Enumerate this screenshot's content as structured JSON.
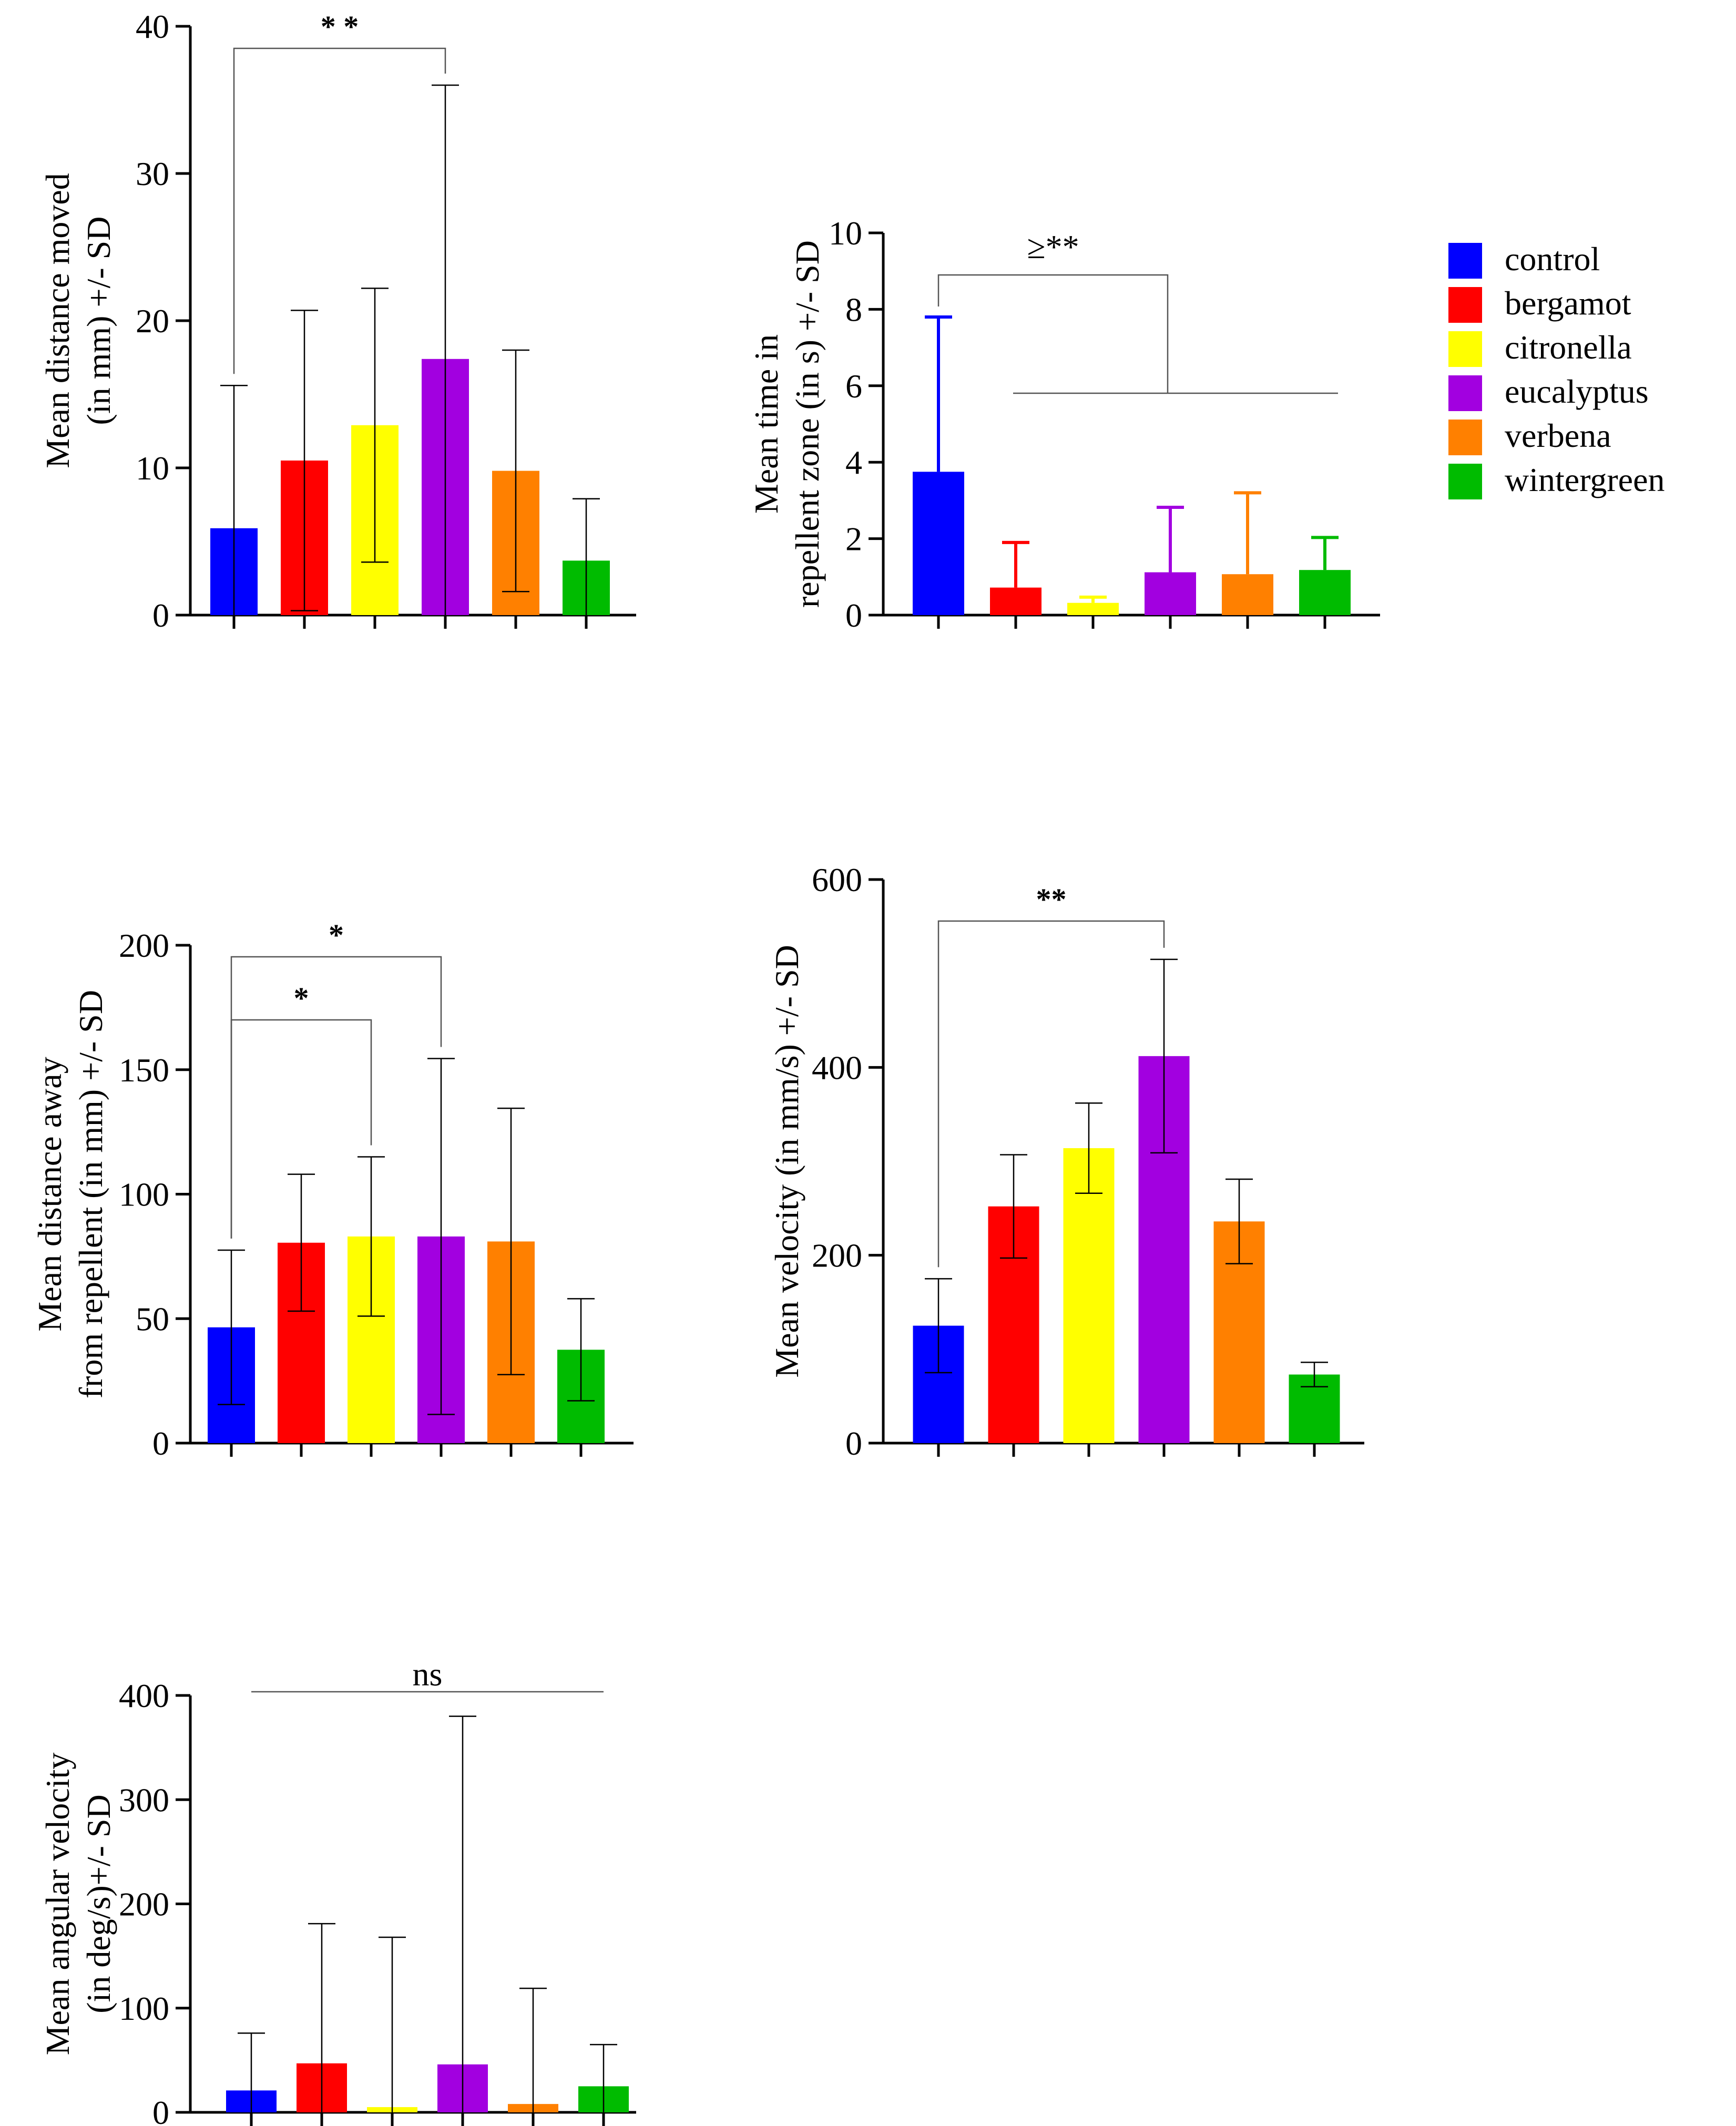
{
  "legend": {
    "items": [
      {
        "label": "control",
        "color": "#0000ff"
      },
      {
        "label": "bergamot",
        "color": "#ff0000"
      },
      {
        "label": "citronella",
        "color": "#ffff00"
      },
      {
        "label": "eucalyptus",
        "color": "#a200e0"
      },
      {
        "label": "verbena",
        "color": "#ff8000"
      },
      {
        "label": "wintergreen",
        "color": "#00bb00"
      }
    ]
  },
  "chart_data": [
    {
      "id": "distance-moved",
      "type": "bar",
      "categories": [
        "control",
        "bergamot",
        "citronella",
        "eucalyptus",
        "verbena",
        "wintergreen"
      ],
      "values": [
        5.9,
        10.5,
        12.9,
        17.4,
        9.8,
        3.7
      ],
      "errors": [
        9.7,
        10.2,
        9.3,
        18.6,
        8.2,
        4.2
      ],
      "ylabel_lines": [
        "Mean distance moved",
        "(in mm) +/- SD"
      ],
      "ylim": [
        0,
        40
      ],
      "yticks": [
        "0",
        "10",
        "20",
        "30",
        "40"
      ],
      "error_bar_style": "black",
      "annotations": [
        {
          "label": "* *",
          "from": 0,
          "to": 3,
          "style": "bold"
        }
      ]
    },
    {
      "id": "time-in-repellent-zone",
      "type": "bar",
      "categories": [
        "control",
        "bergamot",
        "citronella",
        "eucalyptus",
        "verbena",
        "wintergreen"
      ],
      "values": [
        3.75,
        0.72,
        0.32,
        1.12,
        1.07,
        1.18
      ],
      "errors": [
        4.05,
        1.18,
        0.15,
        1.7,
        2.13,
        0.85
      ],
      "ylabel_lines": [
        "Mean time in",
        "repellent zone (in s) +/- SD"
      ],
      "ylim": [
        0,
        10
      ],
      "yticks": [
        "0",
        "2",
        "4",
        "6",
        "8",
        "10"
      ],
      "error_bar_style": "colored",
      "annotations": [
        {
          "label": "≥**",
          "from": 0,
          "to_group": [
            1,
            5
          ],
          "style": "plain"
        }
      ]
    },
    {
      "id": "distance-away",
      "type": "bar",
      "categories": [
        "control",
        "bergamot",
        "citronella",
        "eucalyptus",
        "verbena",
        "wintergreen"
      ],
      "values": [
        46.5,
        80.5,
        83,
        83,
        81,
        37.5
      ],
      "errors": [
        31,
        27.5,
        32,
        71.5,
        53.5,
        20.5
      ],
      "ylabel_lines": [
        "Mean distance away",
        "from repellent (in mm) +/- SD"
      ],
      "ylim": [
        0,
        200
      ],
      "yticks": [
        "0",
        "50",
        "100",
        "150",
        "200"
      ],
      "error_bar_style": "black",
      "annotations": [
        {
          "label": "*",
          "from": 0,
          "to": 3,
          "style": "bold"
        },
        {
          "label": "*",
          "from": 0,
          "to": 2,
          "style": "bold"
        }
      ]
    },
    {
      "id": "velocity",
      "type": "bar",
      "categories": [
        "control",
        "bergamot",
        "citronella",
        "eucalyptus",
        "verbena",
        "wintergreen"
      ],
      "values": [
        125,
        252,
        314,
        412,
        236,
        73
      ],
      "errors": [
        50,
        55,
        48,
        103,
        45,
        13
      ],
      "ylabel_lines": [
        "Mean velocity (in mm/s) +/- SD"
      ],
      "ylim": [
        0,
        600
      ],
      "yticks": [
        "0",
        "200",
        "400",
        "600"
      ],
      "error_bar_style": "black",
      "annotations": [
        {
          "label": "**",
          "from": 0,
          "to": 3,
          "style": "bold"
        }
      ]
    },
    {
      "id": "angular-velocity",
      "type": "bar",
      "categories": [
        "control",
        "bergamot",
        "citronella",
        "eucalyptus",
        "verbena",
        "wintergreen"
      ],
      "values": [
        21,
        47,
        5,
        46,
        8,
        25
      ],
      "errors": [
        55,
        134,
        163,
        334,
        111,
        40
      ],
      "ylabel_lines": [
        "Mean angular velocity",
        "(in deg/s)+/- SD"
      ],
      "ylim": [
        0,
        400
      ],
      "yticks": [
        "0",
        "100",
        "200",
        "300",
        "400"
      ],
      "error_bar_style": "black",
      "annotations": [
        {
          "label": "ns",
          "span": [
            0,
            5
          ],
          "style": "plain"
        }
      ]
    }
  ]
}
